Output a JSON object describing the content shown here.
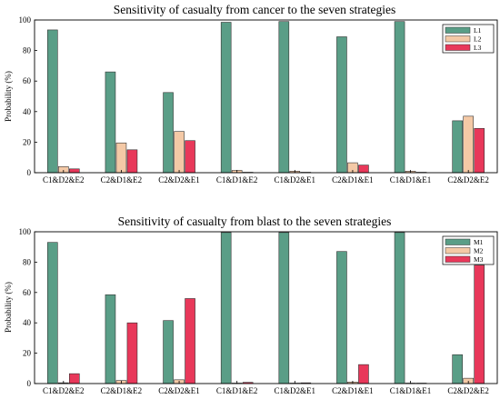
{
  "chart_data": [
    {
      "type": "bar",
      "title": "Sensitivity of casualty from cancer to the seven strategies",
      "xlabel": "",
      "ylabel": "Probability (%)",
      "ylim": [
        0,
        100
      ],
      "yticks": [
        0,
        20,
        40,
        60,
        80,
        100
      ],
      "grid": false,
      "legend_position": "top-right",
      "categories": [
        "C1&D2&E2",
        "C2&D1&E2",
        "C2&D2&E1",
        "C1&D1&E2",
        "C1&D2&E1",
        "C2&D1&E1",
        "C1&D1&E1",
        "C2&D2&E2"
      ],
      "series": [
        {
          "name": "L1",
          "color": "#5a9e87",
          "values": [
            93.5,
            66,
            52.5,
            98.5,
            99,
            89,
            99,
            34
          ]
        },
        {
          "name": "L2",
          "color": "#f4c9a6",
          "values": [
            4,
            19.5,
            27,
            1.5,
            1,
            6.5,
            1,
            37
          ]
        },
        {
          "name": "L3",
          "color": "#e8385a",
          "values": [
            2.5,
            15,
            21,
            0.3,
            0.3,
            5,
            0.3,
            29
          ]
        }
      ]
    },
    {
      "type": "bar",
      "title": "Sensitivity of casualty from blast to the seven strategies",
      "xlabel": "",
      "ylabel": "Probability (%)",
      "ylim": [
        0,
        100
      ],
      "yticks": [
        0,
        20,
        40,
        60,
        80,
        100
      ],
      "grid": false,
      "legend_position": "top-right",
      "categories": [
        "C1&D2&E2",
        "C2&D1&E2",
        "C2&D2&E1",
        "C1&D1&E2",
        "C1&D2&E1",
        "C2&D1&E1",
        "C1&D1&E1",
        "C2&D2&E2"
      ],
      "series": [
        {
          "name": "M1",
          "color": "#5a9e87",
          "values": [
            93,
            58.5,
            41.5,
            99.5,
            99.5,
            87,
            99.5,
            19
          ]
        },
        {
          "name": "M2",
          "color": "#f4c9a6",
          "values": [
            0.5,
            2,
            2.5,
            0.3,
            0.3,
            1,
            0.3,
            3.5
          ]
        },
        {
          "name": "M3",
          "color": "#e8385a",
          "values": [
            6.5,
            40,
            56,
            0.8,
            0.5,
            12.5,
            0.3,
            78
          ]
        }
      ]
    }
  ]
}
